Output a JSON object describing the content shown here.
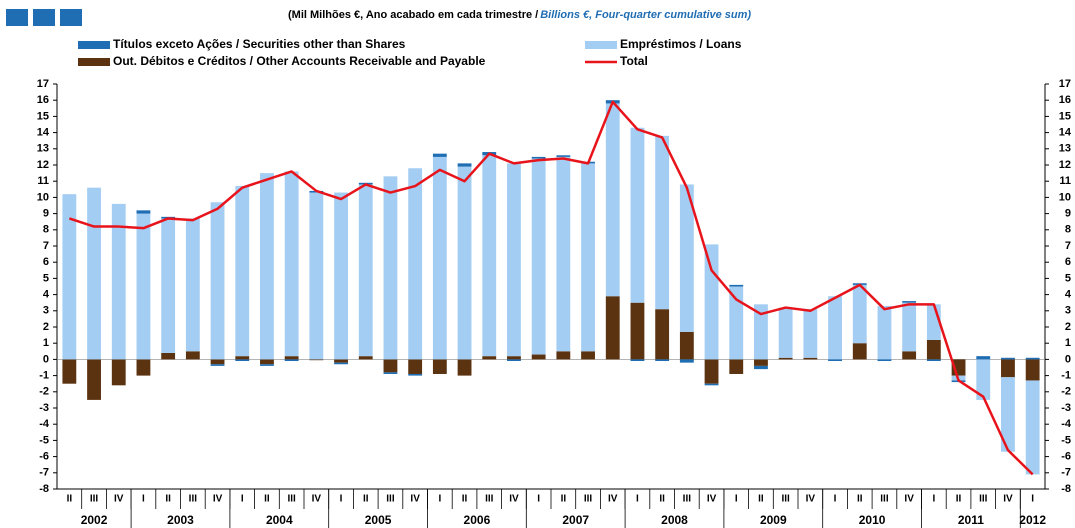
{
  "chart_data": {
    "type": "bar",
    "title": "(Mil Milhões €, Ano acabado em cada trimestre / ",
    "subtitle": "Billions €, Four-quarter cumulative sum)",
    "categories": [
      "II",
      "III",
      "IV",
      "I",
      "II",
      "III",
      "IV",
      "I",
      "II",
      "III",
      "IV",
      "I",
      "II",
      "III",
      "IV",
      "I",
      "II",
      "III",
      "IV",
      "I",
      "II",
      "III",
      "IV",
      "I",
      "II",
      "III",
      "IV",
      "I",
      "II",
      "III",
      "IV",
      "I",
      "II",
      "III",
      "IV",
      "I",
      "II",
      "III",
      "IV",
      "I"
    ],
    "years": [
      "2002",
      "2003",
      "2004",
      "2005",
      "2006",
      "2007",
      "2008",
      "2009",
      "2010",
      "2011",
      "2012"
    ],
    "series": [
      {
        "name": "Out. Débitos e Créditos / Other Accounts Receivable and Payable",
        "type": "bar",
        "color": "#5c3310",
        "values": [
          -1.5,
          -2.5,
          -1.6,
          -1.0,
          0.4,
          0.5,
          -0.3,
          0.2,
          -0.3,
          0.2,
          -0.05,
          -0.2,
          0.2,
          -0.8,
          -0.9,
          -0.9,
          -1.0,
          0.2,
          0.2,
          0.3,
          0.5,
          0.5,
          3.9,
          3.5,
          3.1,
          1.7,
          -1.5,
          -0.9,
          -0.4,
          0.1,
          0.1,
          0,
          1.0,
          0,
          0.5,
          1.2,
          -1.0,
          0,
          -1.1,
          -1.3
        ]
      },
      {
        "name": "Empréstimos / Loans",
        "type": "bar",
        "color": "#a3cdf3",
        "values": [
          10.2,
          10.6,
          9.6,
          9.0,
          8.3,
          8.2,
          9.7,
          10.5,
          11.5,
          11.4,
          10.3,
          10.3,
          10.6,
          11.3,
          11.8,
          12.5,
          11.9,
          12.4,
          11.9,
          12.1,
          12.0,
          11.6,
          11.9,
          10.8,
          10.7,
          9.1,
          7.1,
          4.5,
          3.4,
          3.1,
          3.0,
          3.9,
          3.6,
          3.3,
          3.0,
          2.2,
          -0.3,
          -2.5,
          -4.6,
          -5.8
        ]
      },
      {
        "name": "Títulos exceto Ações / Securities other than Shares",
        "type": "bar",
        "color": "#1f6db3",
        "values": [
          0,
          0,
          0,
          0.2,
          0.1,
          0,
          -0.1,
          -0.1,
          -0.1,
          -0.1,
          0.1,
          -0.1,
          0.1,
          -0.1,
          -0.1,
          0.2,
          0.2,
          0.2,
          -0.1,
          0.1,
          0.1,
          0.1,
          0.2,
          -0.1,
          -0.1,
          -0.2,
          -0.1,
          0.1,
          -0.2,
          0,
          0,
          -0.1,
          0.1,
          -0.1,
          0.1,
          -0.1,
          -0.1,
          0.2,
          0.1,
          0.1
        ]
      },
      {
        "name": "Total",
        "type": "line",
        "color": "#e8141b",
        "values": [
          8.7,
          8.2,
          8.2,
          8.1,
          8.7,
          8.6,
          9.3,
          10.6,
          11.1,
          11.6,
          10.4,
          9.9,
          10.8,
          10.3,
          10.7,
          11.7,
          11.0,
          12.7,
          12.1,
          12.3,
          12.4,
          12.1,
          15.9,
          14.2,
          13.7,
          10.6,
          5.5,
          3.7,
          2.8,
          3.2,
          3.0,
          3.8,
          4.6,
          3.1,
          3.4,
          3.4,
          -1.3,
          -2.3,
          -5.6,
          -7.1
        ]
      }
    ],
    "ylim": [
      -8,
      17
    ],
    "yticks": [
      -8,
      -7,
      -6,
      -5,
      -4,
      -3,
      -2,
      -1,
      0,
      1,
      2,
      3,
      4,
      5,
      6,
      7,
      8,
      9,
      10,
      11,
      12,
      13,
      14,
      15,
      16,
      17
    ],
    "y2lim": [
      -8,
      17
    ],
    "y2ticks": [
      -8,
      -7,
      -6,
      -5,
      -4,
      -3,
      -2,
      -1,
      0,
      1,
      2,
      3,
      4,
      5,
      6,
      7,
      8,
      9,
      10,
      11,
      12,
      13,
      14,
      15,
      16,
      17
    ]
  }
}
